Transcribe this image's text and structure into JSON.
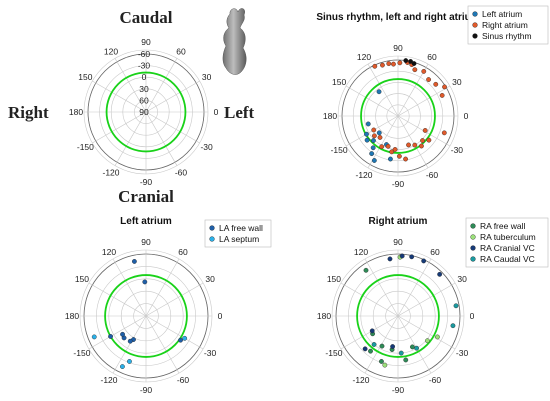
{
  "figure": {
    "orientation_labels": {
      "top": "Caudal",
      "bottom": "Cranial",
      "left": "Right",
      "right": "Left"
    },
    "colors": {
      "sinus_circle": "#19d219",
      "grid": "#c8c8c8",
      "axis_ring": "#666666"
    }
  },
  "chart_data": [
    {
      "type": "scatter",
      "projection": "polar",
      "title": "",
      "angular_ticks": [
        "0",
        "30",
        "60",
        "90",
        "120",
        "150",
        "180",
        "-150",
        "-120",
        "-90",
        "-60",
        "-30"
      ],
      "radial_ticks": [
        "-60",
        "-30",
        "0",
        "30",
        "60",
        "90"
      ],
      "radial_range": [
        -90,
        90
      ],
      "reference_circle_r": 0,
      "legend": [],
      "series": []
    },
    {
      "type": "scatter",
      "projection": "polar",
      "title": "Sinus rhythm, left and right atrium",
      "angular_ticks": [
        "0",
        "30",
        "60",
        "90",
        "120",
        "150",
        "180",
        "-150",
        "-120",
        "-90",
        "-60",
        "-30"
      ],
      "radial_range": [
        0,
        1
      ],
      "reference_circle_r": 0.66,
      "legend_position": "top-right",
      "series": [
        {
          "name": "Left atrium",
          "color": "#1f77b4",
          "points": [
            [
              128,
              0.55
            ],
            [
              -165,
              0.55
            ],
            [
              -150,
              0.65
            ],
            [
              -142,
              0.7
            ],
            [
              -128,
              0.72
            ],
            [
              -125,
              0.82
            ],
            [
              -118,
              0.9
            ],
            [
              -100,
              0.78
            ],
            [
              -112,
              0.55
            ],
            [
              -138,
              0.45
            ],
            [
              -135,
              0.62
            ]
          ]
        },
        {
          "name": "Right atrium",
          "color": "#e05a2b",
          "points": [
            [
              107,
              0.95
            ],
            [
              100,
              0.95
            ],
            [
              95,
              0.93
            ],
            [
              88,
              0.95
            ],
            [
              80,
              0.97
            ],
            [
              75,
              0.95
            ],
            [
              70,
              0.88
            ],
            [
              60,
              0.92
            ],
            [
              50,
              0.85
            ],
            [
              40,
              0.88
            ],
            [
              32,
              0.98
            ],
            [
              25,
              0.87
            ],
            [
              -20,
              0.88
            ],
            [
              -28,
              0.55
            ],
            [
              -38,
              0.7
            ],
            [
              -45,
              0.62
            ],
            [
              -52,
              0.68
            ],
            [
              -60,
              0.6
            ],
            [
              -70,
              0.55
            ],
            [
              -80,
              0.78
            ],
            [
              -88,
              0.72
            ],
            [
              -95,
              0.6
            ],
            [
              -100,
              0.65
            ],
            [
              -108,
              0.57
            ],
            [
              -118,
              0.62
            ],
            [
              -130,
              0.5
            ],
            [
              -140,
              0.55
            ],
            [
              -150,
              0.5
            ],
            [
              115,
              0.98
            ]
          ]
        },
        {
          "name": "Sinus rhythm",
          "color": "#111111",
          "points": [
            [
              82,
              1.0
            ],
            [
              77,
              1.0
            ],
            [
              73,
              0.98
            ]
          ]
        }
      ]
    },
    {
      "type": "scatter",
      "projection": "polar",
      "title": "Left atrium",
      "angular_ticks": [
        "0",
        "30",
        "60",
        "90",
        "120",
        "150",
        "180",
        "-150",
        "-120",
        "-90",
        "-60",
        "-30"
      ],
      "radial_range": [
        0,
        1
      ],
      "reference_circle_r": 0.66,
      "legend_position": "top-right",
      "series": [
        {
          "name": "LA free wall",
          "color": "#1f5fa8",
          "points": [
            [
              102,
              0.9
            ],
            [
              92,
              0.55
            ],
            [
              -118,
              0.43
            ],
            [
              -122,
              0.48
            ],
            [
              -135,
              0.5
            ],
            [
              -150,
              0.66
            ],
            [
              -142,
              0.48
            ],
            [
              -35,
              0.68
            ]
          ]
        },
        {
          "name": "LA septum",
          "color": "#2bb0e8",
          "points": [
            [
              -158,
              0.9
            ],
            [
              -115,
              0.9
            ],
            [
              -110,
              0.78
            ],
            [
              -30,
              0.72
            ]
          ]
        }
      ]
    },
    {
      "type": "scatter",
      "projection": "polar",
      "title": "Right atrium",
      "angular_ticks": [
        "0",
        "30",
        "60",
        "90",
        "120",
        "150",
        "180",
        "-150",
        "-120",
        "-90",
        "-60",
        "-30"
      ],
      "radial_range": [
        0,
        1
      ],
      "reference_circle_r": 0.66,
      "legend_position": "top-right",
      "series": [
        {
          "name": "RA free wall",
          "color": "#2e8b57",
          "points": [
            [
              125,
              0.9
            ],
            [
              -100,
              0.55
            ],
            [
              -80,
              0.72
            ],
            [
              -128,
              0.72
            ],
            [
              -65,
              0.55
            ],
            [
              -118,
              0.55
            ],
            [
              -145,
              0.5
            ],
            [
              -110,
              0.78
            ]
          ]
        },
        {
          "name": "RA tuberculum",
          "color": "#9be07a",
          "points": [
            [
              -105,
              0.82
            ],
            [
              -40,
              0.62
            ],
            [
              -28,
              0.72
            ],
            [
              88,
              0.95
            ]
          ]
        },
        {
          "name": "RA Cranial VC",
          "color": "#163a78",
          "points": [
            [
              98,
              0.93
            ],
            [
              86,
              0.97
            ],
            [
              77,
              0.98
            ],
            [
              65,
              0.98
            ],
            [
              45,
              0.95
            ],
            [
              -135,
              0.75
            ],
            [
              -150,
              0.48
            ],
            [
              -100,
              0.5
            ]
          ]
        },
        {
          "name": "RA Caudal VC",
          "color": "#1a9aa0",
          "points": [
            [
              -130,
              0.6
            ],
            [
              -85,
              0.6
            ],
            [
              -60,
              0.6
            ],
            [
              10,
              0.95
            ],
            [
              -10,
              0.9
            ]
          ]
        }
      ]
    }
  ]
}
